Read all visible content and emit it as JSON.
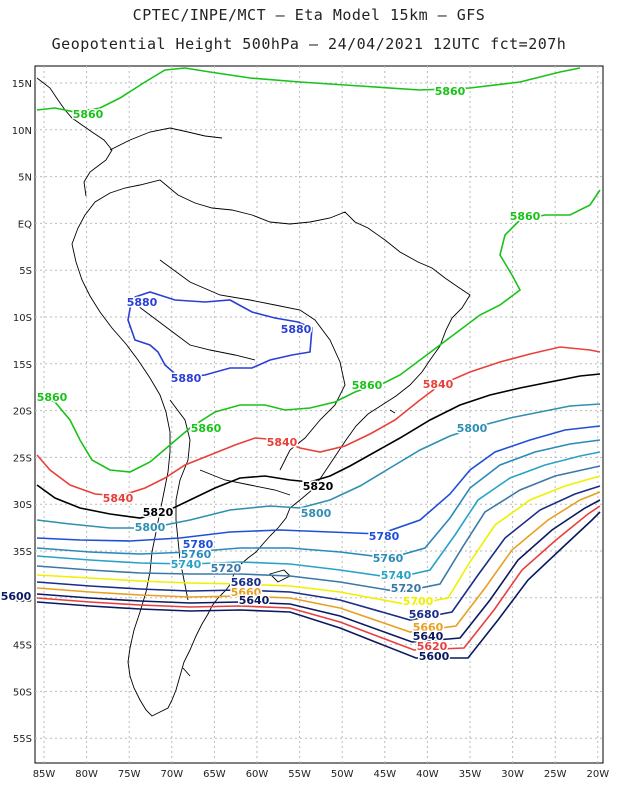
{
  "header": {
    "line1": "CPTEC/INPE/MCT –  Eta Model 15km – GFS",
    "line2": "Geopotential Height 500hPa – 24/04/2021 12UTC fct=207h"
  },
  "axes": {
    "lat_labels": [
      "15N",
      "10N",
      "5N",
      "EQ",
      "5S",
      "10S",
      "15S",
      "20S",
      "25S",
      "30S",
      "35S",
      "40S",
      "45S",
      "50S",
      "55S"
    ],
    "lon_labels": [
      "85W",
      "80W",
      "75W",
      "70W",
      "65W",
      "60W",
      "55W",
      "50W",
      "45W",
      "40W",
      "35W",
      "30W",
      "25W",
      "20W"
    ]
  },
  "colors": {
    "c5880": "#2a3fd6",
    "c5860": "#19c219",
    "c5840": "#e8413a",
    "c5820": "#000000",
    "c5800": "#2f8fb0",
    "c5780": "#1f4fd8",
    "c5760": "#2a8ab8",
    "c5740": "#29a2c8",
    "c5720": "#3a78a8",
    "c5700": "#f0f000",
    "c5680": "#1a2e88",
    "c5660": "#e8a020",
    "c5640": "#0a1a60",
    "c5620": "#e84040",
    "c5600": "#0a1a60",
    "grid": "#bbbbbb",
    "coast": "#000000"
  },
  "contour_labels": [
    {
      "text": "5860",
      "color": "c5860"
    },
    {
      "text": "5860",
      "color": "c5860"
    },
    {
      "text": "5860",
      "color": "c5860"
    },
    {
      "text": "5880",
      "color": "c5880"
    },
    {
      "text": "5880",
      "color": "c5880"
    },
    {
      "text": "5880",
      "color": "c5880"
    },
    {
      "text": "5860",
      "color": "c5860"
    },
    {
      "text": "5860",
      "color": "c5860"
    },
    {
      "text": "5860",
      "color": "c5860"
    },
    {
      "text": "5840",
      "color": "c5840"
    },
    {
      "text": "5840",
      "color": "c5840"
    },
    {
      "text": "5840",
      "color": "c5840"
    },
    {
      "text": "5820",
      "color": "c5820"
    },
    {
      "text": "5820",
      "color": "c5820"
    },
    {
      "text": "5800",
      "color": "c5800"
    },
    {
      "text": "5800",
      "color": "c5800"
    },
    {
      "text": "5800",
      "color": "c5800"
    },
    {
      "text": "5780",
      "color": "c5780"
    },
    {
      "text": "5780",
      "color": "c5780"
    },
    {
      "text": "5760",
      "color": "c5760"
    },
    {
      "text": "5760",
      "color": "c5760"
    },
    {
      "text": "5740",
      "color": "c5740"
    },
    {
      "text": "5740",
      "color": "c5740"
    },
    {
      "text": "5720",
      "color": "c5720"
    },
    {
      "text": "5720",
      "color": "c5720"
    },
    {
      "text": "5700",
      "color": "c5700"
    },
    {
      "text": "5680",
      "color": "c5680"
    },
    {
      "text": "5680",
      "color": "c5680"
    },
    {
      "text": "5660",
      "color": "c5660"
    },
    {
      "text": "5660",
      "color": "c5660"
    },
    {
      "text": "5640",
      "color": "c5640"
    },
    {
      "text": "5640",
      "color": "c5640"
    },
    {
      "text": "5620",
      "color": "c5620"
    },
    {
      "text": "5600",
      "color": "c5600"
    },
    {
      "text": "5600",
      "color": "c5600"
    }
  ]
}
